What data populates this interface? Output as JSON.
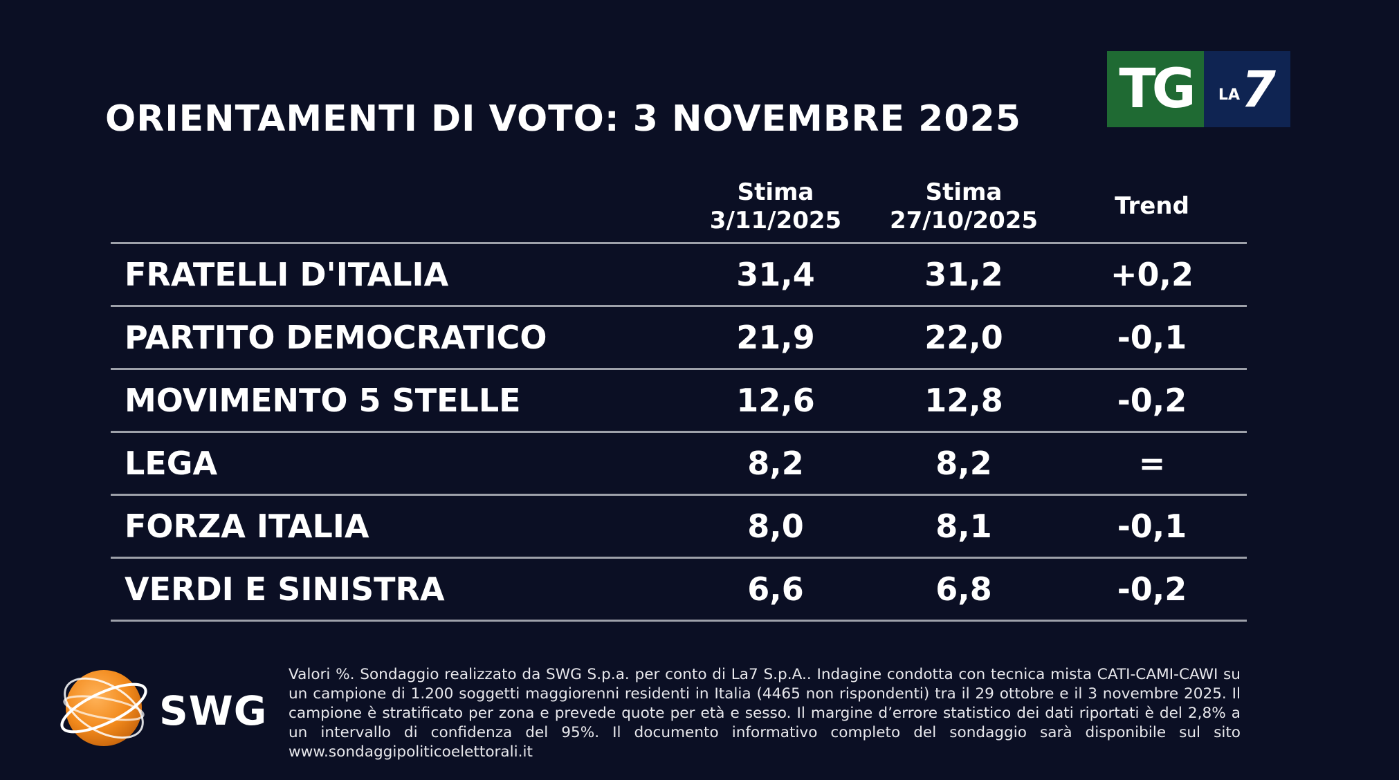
{
  "header": {
    "title": "ORIENTAMENTI DI VOTO: 3 NOVEMBRE 2025"
  },
  "logo": {
    "tg_text": "TG",
    "la_text": "LA",
    "seven_text": "7",
    "tg_color": "#1f6a33",
    "la7_color": "#0f2452"
  },
  "chart_data": {
    "type": "table",
    "title": "ORIENTAMENTI DI VOTO: 3 NOVEMBRE 2025",
    "columns": [
      {
        "line1": "Stima",
        "line2": "3/11/2025"
      },
      {
        "line1": "Stima",
        "line2": "27/10/2025"
      },
      {
        "line1": "Trend",
        "line2": ""
      }
    ],
    "rows": [
      {
        "party": "FRATELLI D'ITALIA",
        "current": "31,4",
        "previous": "31,2",
        "trend": "+0,2"
      },
      {
        "party": "PARTITO DEMOCRATICO",
        "current": "21,9",
        "previous": "22,0",
        "trend": "-0,1"
      },
      {
        "party": "MOVIMENTO 5 STELLE",
        "current": "12,6",
        "previous": "12,8",
        "trend": "-0,2"
      },
      {
        "party": "LEGA",
        "current": "8,2",
        "previous": "8,2",
        "trend": "="
      },
      {
        "party": "FORZA ITALIA",
        "current": "8,0",
        "previous": "8,1",
        "trend": "-0,1"
      },
      {
        "party": "VERDI E SINISTRA",
        "current": "6,6",
        "previous": "6,8",
        "trend": "-0,2"
      }
    ]
  },
  "footer": {
    "source_logo_text": "SWG",
    "note": "Valori %. Sondaggio realizzato da SWG S.p.a. per conto di La7 S.p.A.. Indagine condotta con tecnica mista CATI-CAMI-CAWI su un campione di 1.200 soggetti maggiorenni residenti in Italia (4465 non rispondenti) tra il 29 ottobre e il 3 novembre 2025. Il campione è stratificato per zona e prevede quote per età e sesso. Il margine d’errore statistico dei dati riportati è del 2,8% a un intervallo di confidenza del 95%. Il documento informativo completo del sondaggio sarà disponibile sul sito www.sondaggipoliticoelettorali.it"
  },
  "colors": {
    "background": "#0b0f24",
    "rule": "#9ea1aa",
    "text": "#ffffff",
    "swg_orange": "#f28a1c"
  }
}
